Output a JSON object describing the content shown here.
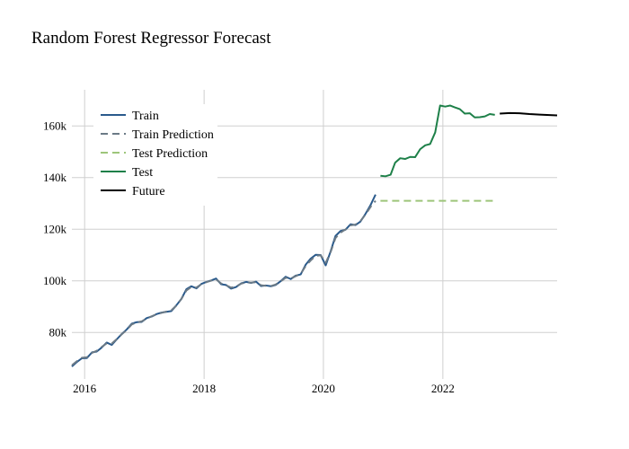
{
  "chart_data": {
    "type": "line",
    "title": "Random Forest Regressor Forecast",
    "xlabel": "",
    "ylabel": "",
    "x_ticks": [
      "2016",
      "2018",
      "2020",
      "2022"
    ],
    "y_ticks": [
      "80k",
      "100k",
      "120k",
      "140k",
      "160k"
    ],
    "xlim": [
      "2015-10-15",
      "2023-12-01"
    ],
    "ylim": [
      62000,
      174000
    ],
    "grid": true,
    "legend": {
      "position": "top-left"
    },
    "series": [
      {
        "name": "Train",
        "color": "#2a5a8c",
        "dash": "solid",
        "points": [
          [
            "2015-10-15",
            66800
          ],
          [
            "2015-11-15",
            68600
          ],
          [
            "2015-12-15",
            70000
          ],
          [
            "2016-01-15",
            70100
          ],
          [
            "2016-02-15",
            72300
          ],
          [
            "2016-03-15",
            72600
          ],
          [
            "2016-04-15",
            74200
          ],
          [
            "2016-05-15",
            76100
          ],
          [
            "2016-06-15",
            75200
          ],
          [
            "2016-07-15",
            77300
          ],
          [
            "2016-08-15",
            79400
          ],
          [
            "2016-09-15",
            81200
          ],
          [
            "2016-10-15",
            83400
          ],
          [
            "2016-11-15",
            84000
          ],
          [
            "2016-12-15",
            84100
          ],
          [
            "2017-01-15",
            85600
          ],
          [
            "2017-02-15",
            86200
          ],
          [
            "2017-03-15",
            87100
          ],
          [
            "2017-04-15",
            87700
          ],
          [
            "2017-05-15",
            88000
          ],
          [
            "2017-06-15",
            88300
          ],
          [
            "2017-07-15",
            90500
          ],
          [
            "2017-08-15",
            93000
          ],
          [
            "2017-09-15",
            96800
          ],
          [
            "2017-10-15",
            97900
          ],
          [
            "2017-11-15",
            97100
          ],
          [
            "2017-12-15",
            98800
          ],
          [
            "2018-01-15",
            99600
          ],
          [
            "2018-02-15",
            100200
          ],
          [
            "2018-03-15",
            100900
          ],
          [
            "2018-04-15",
            98700
          ],
          [
            "2018-05-15",
            98400
          ],
          [
            "2018-06-15",
            97000
          ],
          [
            "2018-07-15",
            97600
          ],
          [
            "2018-08-15",
            99000
          ],
          [
            "2018-09-15",
            99600
          ],
          [
            "2018-10-15",
            99200
          ],
          [
            "2018-11-15",
            99700
          ],
          [
            "2018-12-15",
            98000
          ],
          [
            "2019-01-15",
            98200
          ],
          [
            "2019-02-15",
            97900
          ],
          [
            "2019-03-15",
            98400
          ],
          [
            "2019-04-15",
            99900
          ],
          [
            "2019-05-15",
            101600
          ],
          [
            "2019-06-15",
            100700
          ],
          [
            "2019-07-15",
            102000
          ],
          [
            "2019-08-15",
            102500
          ],
          [
            "2019-09-15",
            106300
          ],
          [
            "2019-10-15",
            108600
          ],
          [
            "2019-11-15",
            110100
          ],
          [
            "2019-12-15",
            110000
          ],
          [
            "2020-01-15",
            106000
          ],
          [
            "2020-02-15",
            111600
          ],
          [
            "2020-03-15",
            117400
          ],
          [
            "2020-04-15",
            119300
          ],
          [
            "2020-05-15",
            119800
          ],
          [
            "2020-06-15",
            121900
          ],
          [
            "2020-07-15",
            121600
          ],
          [
            "2020-08-15",
            123000
          ],
          [
            "2020-09-15",
            126000
          ],
          [
            "2020-10-15",
            129300
          ],
          [
            "2020-11-15",
            133400
          ]
        ]
      },
      {
        "name": "Train Prediction",
        "color": "#6b7a86",
        "dash": "dashed",
        "points": [
          [
            "2015-10-15",
            67300
          ],
          [
            "2015-11-15",
            68900
          ],
          [
            "2015-12-15",
            70200
          ],
          [
            "2016-01-15",
            70400
          ],
          [
            "2016-02-15",
            72100
          ],
          [
            "2016-03-15",
            72900
          ],
          [
            "2016-04-15",
            74400
          ],
          [
            "2016-05-15",
            75800
          ],
          [
            "2016-06-15",
            75700
          ],
          [
            "2016-07-15",
            77400
          ],
          [
            "2016-08-15",
            79300
          ],
          [
            "2016-09-15",
            81000
          ],
          [
            "2016-10-15",
            83100
          ],
          [
            "2016-11-15",
            83900
          ],
          [
            "2016-12-15",
            84300
          ],
          [
            "2017-01-15",
            85400
          ],
          [
            "2017-02-15",
            86300
          ],
          [
            "2017-03-15",
            87000
          ],
          [
            "2017-04-15",
            87600
          ],
          [
            "2017-05-15",
            88100
          ],
          [
            "2017-06-15",
            88600
          ],
          [
            "2017-07-15",
            90400
          ],
          [
            "2017-08-15",
            93000
          ],
          [
            "2017-09-15",
            96300
          ],
          [
            "2017-10-15",
            97600
          ],
          [
            "2017-11-15",
            97400
          ],
          [
            "2017-12-15",
            98700
          ],
          [
            "2018-01-15",
            99500
          ],
          [
            "2018-02-15",
            100100
          ],
          [
            "2018-03-15",
            100600
          ],
          [
            "2018-04-15",
            99000
          ],
          [
            "2018-05-15",
            98300
          ],
          [
            "2018-06-15",
            97400
          ],
          [
            "2018-07-15",
            97800
          ],
          [
            "2018-08-15",
            98900
          ],
          [
            "2018-09-15",
            99400
          ],
          [
            "2018-10-15",
            99300
          ],
          [
            "2018-11-15",
            99500
          ],
          [
            "2018-12-15",
            98300
          ],
          [
            "2019-01-15",
            98100
          ],
          [
            "2019-02-15",
            98000
          ],
          [
            "2019-03-15",
            98600
          ],
          [
            "2019-04-15",
            99800
          ],
          [
            "2019-05-15",
            101200
          ],
          [
            "2019-06-15",
            100900
          ],
          [
            "2019-07-15",
            101800
          ],
          [
            "2019-08-15",
            102700
          ],
          [
            "2019-09-15",
            105800
          ],
          [
            "2019-10-15",
            107900
          ],
          [
            "2019-11-15",
            109700
          ],
          [
            "2019-12-15",
            109900
          ],
          [
            "2020-01-15",
            107000
          ],
          [
            "2020-02-15",
            111300
          ],
          [
            "2020-03-15",
            116600
          ],
          [
            "2020-04-15",
            118700
          ],
          [
            "2020-05-15",
            119900
          ],
          [
            "2020-06-15",
            121500
          ],
          [
            "2020-07-15",
            121800
          ],
          [
            "2020-08-15",
            123200
          ],
          [
            "2020-09-15",
            125700
          ],
          [
            "2020-10-15",
            128600
          ],
          [
            "2020-11-15",
            131000
          ]
        ]
      },
      {
        "name": "Test Prediction",
        "color": "#9dc57a",
        "dash": "dashed",
        "points": [
          [
            "2020-12-15",
            131000
          ],
          [
            "2022-11-15",
            131000
          ]
        ]
      },
      {
        "name": "Test",
        "color": "#1e8049",
        "dash": "solid",
        "points": [
          [
            "2020-12-15",
            140700
          ],
          [
            "2021-01-15",
            140500
          ],
          [
            "2021-02-15",
            141100
          ],
          [
            "2021-03-15",
            145800
          ],
          [
            "2021-04-15",
            147500
          ],
          [
            "2021-05-15",
            147200
          ],
          [
            "2021-06-15",
            148000
          ],
          [
            "2021-07-15",
            147900
          ],
          [
            "2021-08-15",
            151000
          ],
          [
            "2021-09-15",
            152500
          ],
          [
            "2021-10-15",
            153000
          ],
          [
            "2021-11-15",
            157500
          ],
          [
            "2021-12-15",
            167900
          ],
          [
            "2022-01-15",
            167500
          ],
          [
            "2022-02-15",
            167900
          ],
          [
            "2022-03-15",
            167200
          ],
          [
            "2022-04-15",
            166500
          ],
          [
            "2022-05-15",
            164800
          ],
          [
            "2022-06-15",
            164900
          ],
          [
            "2022-07-15",
            163300
          ],
          [
            "2022-08-15",
            163400
          ],
          [
            "2022-09-15",
            163700
          ],
          [
            "2022-10-15",
            164600
          ],
          [
            "2022-11-15",
            164300
          ]
        ]
      },
      {
        "name": "Future",
        "color": "#000000",
        "dash": "solid",
        "points": [
          [
            "2022-12-15",
            164800
          ],
          [
            "2023-02-15",
            165000
          ],
          [
            "2023-04-15",
            164900
          ],
          [
            "2023-06-15",
            164600
          ],
          [
            "2023-08-15",
            164400
          ],
          [
            "2023-10-15",
            164200
          ],
          [
            "2023-12-01",
            164100
          ]
        ]
      }
    ]
  }
}
